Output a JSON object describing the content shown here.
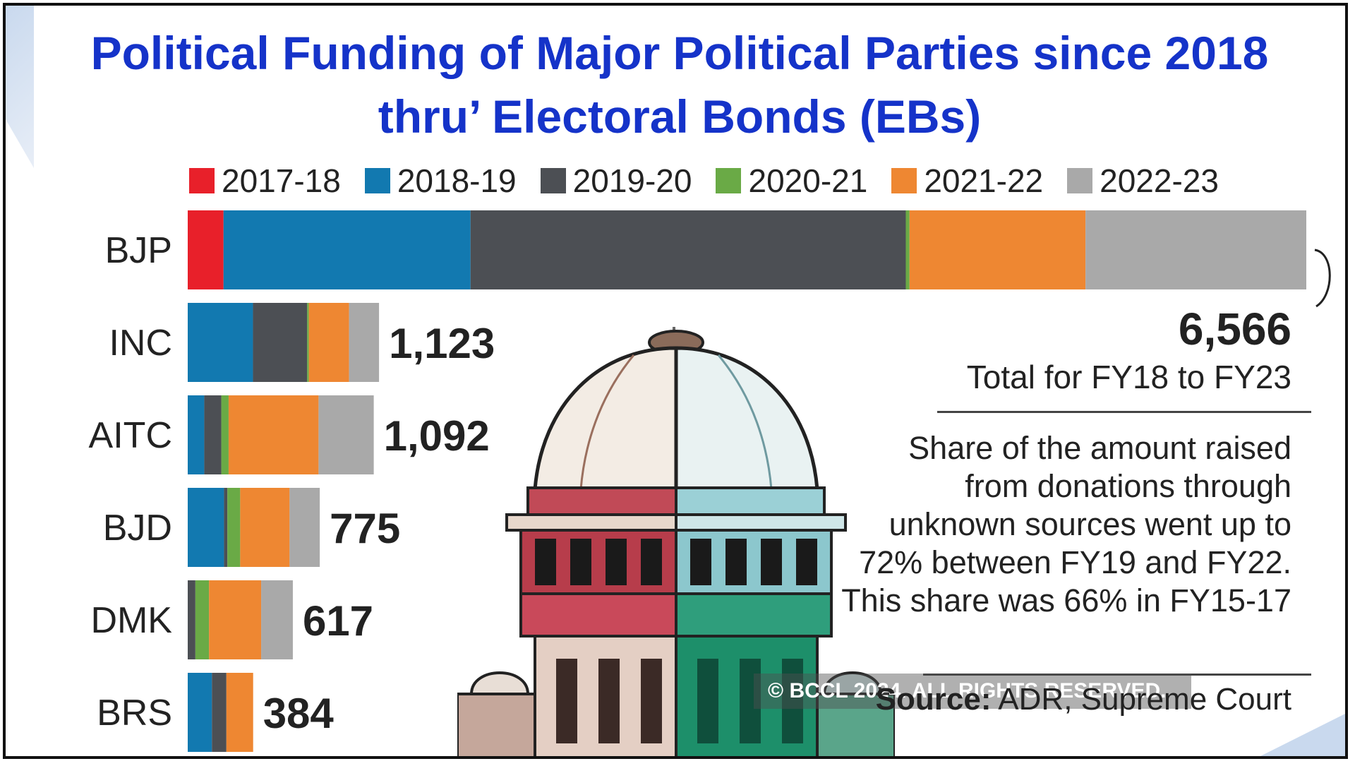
{
  "title": "Political Funding of Major Political Parties since 2018 thru’ Electoral Bonds (EBs)",
  "colors": {
    "2017-18": "#e8202a",
    "2018-19": "#1279b0",
    "2019-20": "#4c4f54",
    "2020-21": "#6aaa46",
    "2021-22": "#ee8732",
    "2022-23": "#a9a9a9",
    "title": "#1533c9"
  },
  "chart_data": {
    "type": "bar",
    "orientation": "horizontal",
    "stacked": true,
    "title": "Political Funding of Major Political Parties since 2018 thru’ Electoral Bonds (EBs)",
    "unit": "",
    "categories": [
      "BJP",
      "INC",
      "AITC",
      "BJD",
      "DMK",
      "BRS"
    ],
    "totals": [
      "6,566",
      "1,123",
      "1,092",
      "775",
      "617",
      "384"
    ],
    "legend": [
      "2017-18",
      "2018-19",
      "2019-20",
      "2020-21",
      "2021-22",
      "2022-23"
    ],
    "legend_position": "top",
    "series": [
      {
        "name": "2017-18",
        "values": [
          210,
          0,
          0,
          0,
          0,
          0
        ]
      },
      {
        "name": "2018-19",
        "values": [
          1450,
          383,
          97,
          213,
          0,
          142
        ]
      },
      {
        "name": "2019-20",
        "values": [
          2555,
          318,
          100,
          20,
          45,
          85
        ]
      },
      {
        "name": "2020-21",
        "values": [
          22,
          10,
          43,
          75,
          80,
          0
        ]
      },
      {
        "name": "2021-22",
        "values": [
          1033,
          236,
          528,
          290,
          306,
          157
        ]
      },
      {
        "name": "2022-23",
        "values": [
          1296,
          176,
          324,
          177,
          186,
          0
        ]
      }
    ]
  },
  "bjp_total": {
    "value": "6,566",
    "caption": "Total for FY18 to FY23"
  },
  "note": "Share of the amount raised from donations through unknown sources went up to 72% between FY19 and FY22. This share was 66% in FY15-17",
  "copyright": "© BCCL 2024. ALL RIGHTS RESERVED.",
  "source": {
    "label": "Source:",
    "text": "ADR, Supreme Court"
  }
}
